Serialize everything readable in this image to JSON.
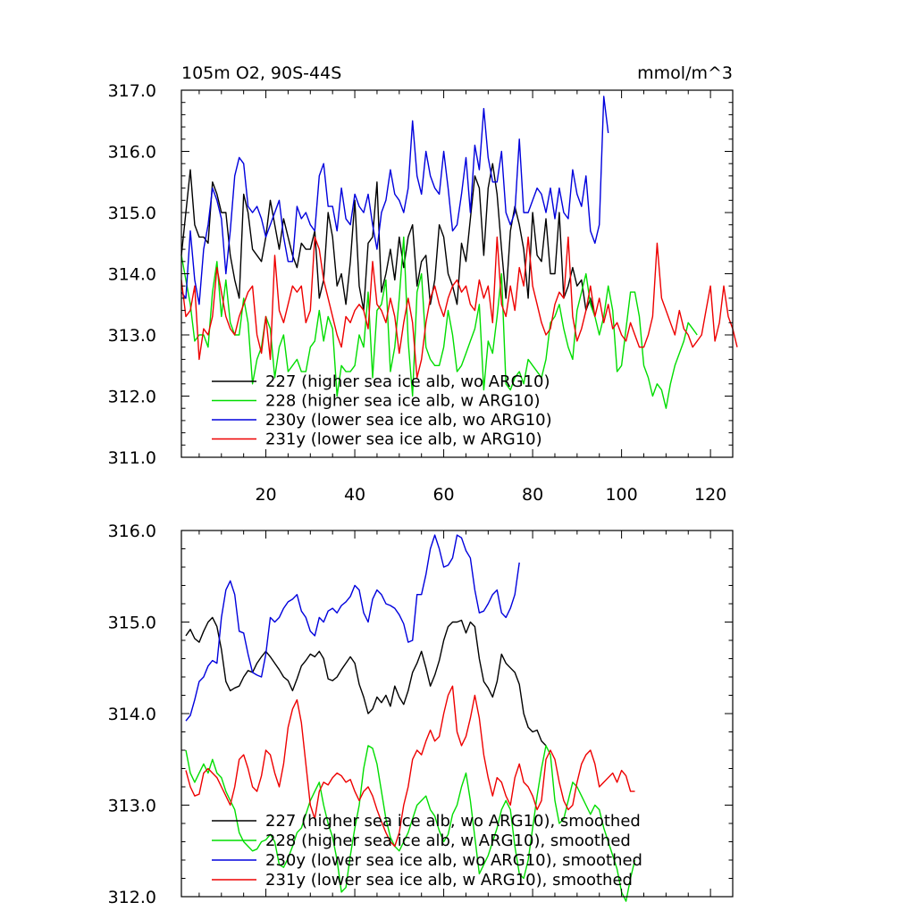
{
  "chart_data": [
    {
      "type": "line",
      "title": "105m O2, 90S-44S",
      "units": "mmol/m^3",
      "xlabel": "",
      "ylabel": "",
      "xlim": [
        1,
        125
      ],
      "ylim": [
        311.0,
        317.0
      ],
      "x_ticks": [
        20,
        40,
        60,
        80,
        100,
        120
      ],
      "y_ticks": [
        "311.0",
        "312.0",
        "313.0",
        "314.0",
        "315.0",
        "316.0",
        "317.0"
      ],
      "legend": "bottom-left",
      "grid": false,
      "series": [
        {
          "name": "227 (higher sea ice alb, wo ARG10)",
          "color": "#000000",
          "x_start": 1,
          "values": [
            314.3,
            315.0,
            315.7,
            314.8,
            314.6,
            314.6,
            314.5,
            315.5,
            315.3,
            315.0,
            315.0,
            314.3,
            313.9,
            313.6,
            315.3,
            315.0,
            314.4,
            314.3,
            314.2,
            314.6,
            315.2,
            314.8,
            314.4,
            314.9,
            314.6,
            314.3,
            314.1,
            314.5,
            314.4,
            314.4,
            314.7,
            313.6,
            313.9,
            315.0,
            314.6,
            313.8,
            314.0,
            313.5,
            314.2,
            315.2,
            313.8,
            313.4,
            314.5,
            314.6,
            315.5,
            313.7,
            314.0,
            314.4,
            313.9,
            314.6,
            314.1,
            314.6,
            314.8,
            313.8,
            314.2,
            314.3,
            313.5,
            313.9,
            314.8,
            314.6,
            314.0,
            313.8,
            313.5,
            314.5,
            314.2,
            314.9,
            315.6,
            315.4,
            314.3,
            315.4,
            315.8,
            315.3,
            314.4,
            313.6,
            314.7,
            315.1,
            314.8,
            314.4,
            313.6,
            315.0,
            314.3,
            314.2,
            314.9,
            314.0,
            314.0,
            315.0,
            313.6,
            313.8,
            314.1,
            313.8,
            313.9,
            313.4,
            313.6,
            313.3
          ]
        },
        {
          "name": "228 (higher sea ice alb, w ARG10)",
          "color": "#00dd00",
          "x_start": 1,
          "values": [
            314.3,
            313.9,
            313.5,
            312.9,
            313.0,
            313.0,
            312.8,
            313.7,
            314.2,
            313.3,
            313.9,
            313.2,
            313.0,
            313.0,
            313.6,
            313.2,
            312.2,
            312.6,
            312.8,
            313.3,
            313.1,
            312.3,
            312.8,
            313.0,
            312.4,
            312.5,
            312.6,
            312.4,
            312.4,
            312.8,
            312.9,
            313.4,
            312.9,
            313.3,
            313.1,
            312.0,
            312.5,
            312.4,
            312.4,
            312.5,
            313.0,
            312.8,
            313.7,
            312.3,
            313.4,
            313.5,
            313.9,
            312.4,
            312.8,
            313.6,
            314.6,
            312.9,
            312.0,
            313.7,
            314.0,
            312.8,
            312.6,
            312.5,
            312.5,
            312.8,
            313.4,
            313.0,
            312.4,
            312.5,
            312.7,
            312.9,
            313.1,
            313.5,
            312.1,
            312.9,
            312.7,
            313.3,
            314.0,
            312.2,
            312.1,
            312.3,
            312.4,
            312.2,
            312.6,
            312.5,
            312.4,
            312.3,
            312.6,
            313.2,
            313.3,
            313.5,
            313.1,
            312.8,
            312.6,
            313.4,
            313.7,
            314.0,
            313.5,
            313.3,
            313.0,
            313.3,
            313.8,
            313.4,
            312.4,
            312.5,
            313.1,
            313.7,
            313.7,
            313.3,
            312.5,
            312.3,
            312.0,
            312.2,
            312.1,
            311.8,
            312.2,
            312.5,
            312.7,
            312.9,
            313.2,
            313.1,
            313.0
          ]
        },
        {
          "name": "230y (lower sea ice alb, wo ARG10)",
          "color": "#0000dd",
          "x_start": 1,
          "values": [
            313.7,
            313.6,
            314.7,
            313.9,
            313.5,
            314.4,
            314.8,
            315.4,
            315.2,
            314.9,
            314.0,
            314.7,
            315.6,
            315.9,
            315.8,
            315.1,
            315.0,
            315.1,
            314.9,
            314.6,
            314.8,
            315.0,
            315.2,
            314.6,
            314.2,
            314.2,
            315.1,
            314.9,
            315.0,
            314.8,
            314.7,
            315.6,
            315.8,
            315.1,
            315.1,
            314.7,
            315.4,
            314.9,
            314.8,
            315.3,
            315.1,
            315.0,
            315.3,
            314.8,
            314.4,
            315.0,
            315.2,
            315.7,
            315.3,
            315.2,
            315.0,
            315.4,
            316.5,
            315.6,
            315.3,
            316.0,
            315.6,
            315.4,
            315.3,
            316.0,
            315.4,
            314.7,
            314.8,
            315.3,
            315.9,
            315.0,
            316.1,
            315.7,
            316.7,
            315.9,
            315.5,
            315.5,
            316.0,
            315.0,
            314.8,
            315.0,
            316.2,
            315.0,
            315.0,
            315.2,
            315.4,
            315.3,
            315.0,
            315.4,
            314.9,
            315.4,
            315.0,
            314.9,
            315.7,
            315.3,
            315.1,
            315.6,
            314.7,
            314.5,
            314.8,
            316.9,
            316.3
          ]
        },
        {
          "name": "231y (lower sea ice alb, w ARG10)",
          "color": "#ee0000",
          "x_start": 1,
          "values": [
            313.9,
            313.3,
            313.4,
            313.8,
            312.6,
            313.1,
            313.0,
            313.3,
            314.1,
            313.7,
            313.3,
            313.1,
            313.0,
            313.3,
            313.5,
            313.7,
            313.8,
            313.0,
            312.7,
            313.3,
            312.6,
            314.3,
            313.4,
            313.2,
            313.5,
            313.8,
            313.7,
            313.8,
            313.2,
            313.4,
            314.6,
            314.4,
            313.9,
            313.6,
            313.3,
            313.0,
            312.8,
            313.3,
            313.2,
            313.4,
            313.5,
            313.4,
            313.1,
            314.2,
            313.5,
            313.4,
            313.2,
            313.6,
            313.3,
            312.7,
            313.2,
            313.6,
            313.2,
            312.3,
            312.6,
            313.2,
            313.6,
            313.8,
            313.5,
            313.3,
            313.6,
            313.8,
            313.9,
            313.7,
            313.8,
            313.5,
            313.4,
            313.9,
            313.6,
            313.8,
            313.2,
            314.6,
            313.5,
            313.3,
            313.8,
            313.4,
            314.1,
            313.8,
            314.6,
            313.8,
            313.5,
            313.2,
            313.0,
            313.1,
            313.5,
            313.7,
            313.6,
            314.6,
            313.3,
            312.9,
            313.1,
            313.4,
            313.8,
            313.3,
            313.6,
            313.2,
            313.5,
            313.1,
            313.2,
            313.0,
            312.9,
            313.2,
            313.0,
            312.8,
            312.8,
            313.0,
            313.3,
            314.5,
            313.6,
            313.4,
            313.2,
            313.0,
            313.4,
            313.1,
            313.0,
            312.8,
            312.9,
            313.0,
            313.4,
            313.8,
            312.9,
            313.2,
            313.8,
            313.3,
            313.1,
            312.8
          ]
        }
      ]
    },
    {
      "type": "line",
      "title": "",
      "xlabel": "",
      "ylabel": "",
      "xlim": [
        1,
        125
      ],
      "ylim": [
        312.0,
        316.0
      ],
      "x_ticks": [
        20,
        40,
        60,
        80,
        100,
        120
      ],
      "y_ticks": [
        "312.0",
        "313.0",
        "314.0",
        "315.0",
        "316.0"
      ],
      "legend": "bottom-left",
      "grid": false,
      "series": [
        {
          "name": "227 (higher sea ice alb, wo ARG10), smoothed",
          "color": "#000000",
          "x_start": 2,
          "values": [
            314.85,
            314.92,
            314.82,
            314.78,
            314.9,
            315.0,
            315.05,
            314.95,
            314.7,
            314.35,
            314.25,
            314.28,
            314.3,
            314.4,
            314.47,
            314.45,
            314.55,
            314.62,
            314.68,
            314.62,
            314.55,
            314.48,
            314.4,
            314.36,
            314.25,
            314.38,
            314.52,
            314.58,
            314.65,
            314.62,
            314.68,
            314.6,
            314.38,
            314.36,
            314.4,
            314.48,
            314.55,
            314.62,
            314.55,
            314.32,
            314.18,
            314.0,
            314.05,
            314.18,
            314.12,
            314.2,
            314.08,
            314.3,
            314.18,
            314.1,
            314.25,
            314.45,
            314.55,
            314.68,
            314.5,
            314.3,
            314.42,
            314.58,
            314.8,
            314.95,
            315.0,
            315.0,
            315.02,
            314.88,
            315.0,
            314.95,
            314.6,
            314.35,
            314.28,
            314.18,
            314.35,
            314.65,
            314.55,
            314.5,
            314.45,
            314.32,
            314.0,
            313.85,
            313.8,
            313.82,
            313.7,
            313.65
          ]
        },
        {
          "name": "228 (higher sea ice alb, w ARG10), smoothed",
          "color": "#00dd00",
          "x_start": 2,
          "values": [
            313.6,
            313.35,
            313.25,
            313.35,
            313.45,
            313.35,
            313.5,
            313.35,
            313.3,
            313.15,
            313.05,
            312.95,
            312.7,
            312.6,
            312.55,
            312.5,
            312.52,
            312.6,
            312.62,
            312.68,
            312.6,
            312.35,
            312.32,
            312.42,
            312.55,
            312.7,
            312.75,
            312.9,
            313.05,
            313.15,
            313.25,
            313.0,
            312.8,
            312.65,
            312.4,
            312.05,
            312.1,
            312.45,
            312.75,
            313.0,
            313.4,
            313.65,
            313.62,
            313.45,
            313.15,
            312.85,
            312.65,
            312.55,
            312.5,
            312.6,
            312.7,
            312.85,
            313.0,
            313.05,
            313.1,
            312.95,
            312.88,
            312.72,
            312.6,
            312.68,
            312.9,
            313.0,
            313.2,
            313.35,
            313.05,
            312.65,
            312.25,
            312.35,
            312.45,
            312.6,
            312.75,
            312.95,
            313.05,
            312.95,
            312.55,
            312.25,
            312.2,
            312.4,
            312.75,
            313.1,
            313.4,
            313.65,
            313.55,
            313.05,
            312.8,
            312.85,
            313.05,
            313.25,
            313.2,
            313.1,
            313.0,
            312.9,
            313.0,
            312.95,
            312.75,
            312.6,
            312.45,
            312.3,
            312.05,
            311.95,
            312.2,
            312.4
          ]
        },
        {
          "name": "230y (lower sea ice alb, wo ARG10), smoothed",
          "color": "#0000dd",
          "x_start": 2,
          "values": [
            313.92,
            313.98,
            314.15,
            314.35,
            314.4,
            314.52,
            314.58,
            314.55,
            315.05,
            315.35,
            315.45,
            315.3,
            314.9,
            314.88,
            314.65,
            314.45,
            314.42,
            314.4,
            314.65,
            315.05,
            315.0,
            315.05,
            315.15,
            315.22,
            315.25,
            315.3,
            315.12,
            315.05,
            314.9,
            314.85,
            315.05,
            315.0,
            315.12,
            315.15,
            315.1,
            315.18,
            315.22,
            315.28,
            315.4,
            315.35,
            315.1,
            315.0,
            315.25,
            315.35,
            315.3,
            315.2,
            315.18,
            315.15,
            315.08,
            314.98,
            314.78,
            314.8,
            315.3,
            315.3,
            315.52,
            315.8,
            315.95,
            315.8,
            315.6,
            315.62,
            315.7,
            315.95,
            315.92,
            315.78,
            315.7,
            315.35,
            315.1,
            315.12,
            315.2,
            315.3,
            315.35,
            315.1,
            315.05,
            315.15,
            315.3,
            315.65
          ]
        },
        {
          "name": "231y (lower sea ice alb, w ARG10), smoothed",
          "color": "#ee0000",
          "x_start": 2,
          "values": [
            313.38,
            313.2,
            313.1,
            313.12,
            313.35,
            313.4,
            313.35,
            313.3,
            313.2,
            313.1,
            313.0,
            313.2,
            313.5,
            313.55,
            313.4,
            313.2,
            313.15,
            313.32,
            313.6,
            313.55,
            313.35,
            313.2,
            313.45,
            313.85,
            314.05,
            314.15,
            313.9,
            313.45,
            313.0,
            312.85,
            313.15,
            313.25,
            313.22,
            313.3,
            313.35,
            313.32,
            313.25,
            313.28,
            313.15,
            313.05,
            313.15,
            313.2,
            313.1,
            312.95,
            312.82,
            312.7,
            312.6,
            312.55,
            312.7,
            313.0,
            313.2,
            313.5,
            313.6,
            313.55,
            313.7,
            313.82,
            313.7,
            313.75,
            314.0,
            314.2,
            314.3,
            313.8,
            313.65,
            313.75,
            313.95,
            314.2,
            313.95,
            313.55,
            313.3,
            313.1,
            313.3,
            313.25,
            313.1,
            313.0,
            313.3,
            313.45,
            313.25,
            313.2,
            313.1,
            312.95,
            313.05,
            313.5,
            313.6,
            313.5,
            313.25,
            313.05,
            312.95,
            313.0,
            313.25,
            313.45,
            313.55,
            313.6,
            313.45,
            313.2,
            313.25,
            313.3,
            313.35,
            313.25,
            313.38,
            313.32,
            313.15,
            313.15
          ]
        }
      ]
    }
  ]
}
